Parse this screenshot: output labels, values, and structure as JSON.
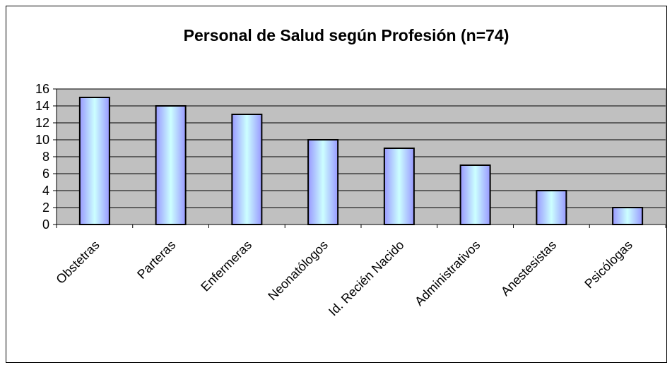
{
  "chart_data": {
    "type": "bar",
    "title": "Personal de Salud según Profesión (n=74)",
    "categories": [
      "Obstetras",
      "Parteras",
      "Enfermeras",
      "Neonatólogos",
      "Id. Recién Nacido",
      "Administrativos",
      "Anestesistas",
      "Psicólogas"
    ],
    "values": [
      15,
      14,
      13,
      10,
      9,
      7,
      4,
      2
    ],
    "color": "#9999ff",
    "ylim": [
      0,
      16
    ],
    "yticks": [
      0,
      2,
      4,
      6,
      8,
      10,
      12,
      14,
      16
    ],
    "grid": true
  }
}
